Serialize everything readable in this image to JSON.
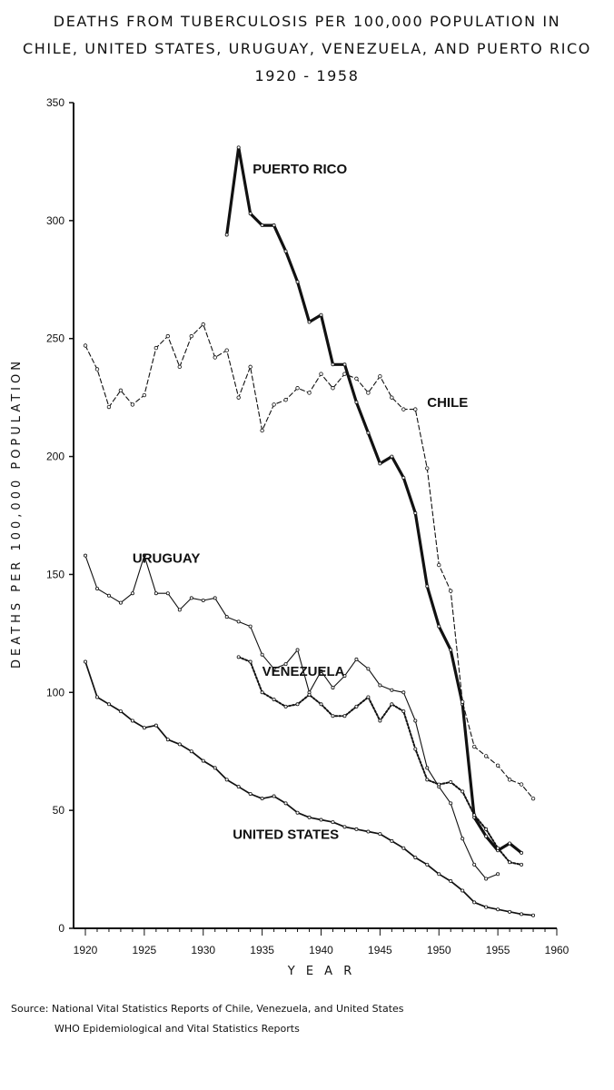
{
  "chart_data": {
    "type": "line",
    "title_lines": [
      "DEATHS FROM TUBERCULOSIS PER 100,000 POPULATION IN",
      "CHILE, UNITED STATES, URUGUAY, VENEZUELA, AND PUERTO RICO",
      "1920 - 1958"
    ],
    "xlabel": "Y E A R",
    "ylabel": "DEATHS PER 100,000 POPULATION",
    "xlim": [
      1920,
      1960
    ],
    "ylim": [
      0,
      350
    ],
    "xticks": [
      1920,
      1925,
      1930,
      1935,
      1940,
      1945,
      1950,
      1955,
      1960
    ],
    "yticks": [
      0,
      50,
      100,
      150,
      200,
      250,
      300,
      350
    ],
    "grid": false,
    "legend": "none (series labeled directly on chart)",
    "series": [
      {
        "name": "PUERTO RICO",
        "style": "solid-thick",
        "x": [
          1932,
          1933,
          1934,
          1935,
          1936,
          1937,
          1938,
          1939,
          1940,
          1941,
          1942,
          1943,
          1944,
          1945,
          1946,
          1947,
          1948,
          1949,
          1950,
          1951,
          1952,
          1953,
          1954,
          1955,
          1956,
          1957
        ],
        "y": [
          294,
          331,
          303,
          298,
          298,
          287,
          274,
          257,
          260,
          239,
          239,
          223,
          210,
          197,
          200,
          191,
          176,
          145,
          128,
          118,
          95,
          47,
          39,
          33,
          36,
          32
        ]
      },
      {
        "name": "CHILE",
        "style": "dashed",
        "x": [
          1920,
          1921,
          1922,
          1923,
          1924,
          1925,
          1926,
          1927,
          1928,
          1929,
          1930,
          1931,
          1932,
          1933,
          1934,
          1935,
          1936,
          1937,
          1938,
          1939,
          1940,
          1941,
          1942,
          1943,
          1944,
          1945,
          1946,
          1947,
          1948,
          1949,
          1950,
          1951,
          1952,
          1953,
          1954,
          1955,
          1956,
          1957,
          1958
        ],
        "y": [
          247,
          237,
          221,
          228,
          222,
          226,
          246,
          251,
          238,
          251,
          256,
          242,
          245,
          225,
          238,
          211,
          222,
          224,
          229,
          227,
          235,
          229,
          235,
          233,
          227,
          234,
          225,
          220,
          220,
          195,
          154,
          143,
          96,
          77,
          73,
          69,
          63,
          61,
          55
        ]
      },
      {
        "name": "URUGUAY",
        "style": "solid-thin",
        "x": [
          1920,
          1921,
          1922,
          1923,
          1924,
          1925,
          1926,
          1927,
          1928,
          1929,
          1930,
          1931,
          1932,
          1933,
          1934,
          1935,
          1936,
          1937,
          1938,
          1939,
          1940,
          1941,
          1942,
          1943,
          1944,
          1945,
          1946,
          1947,
          1948,
          1949,
          1950,
          1951,
          1952,
          1953,
          1954,
          1955
        ],
        "y": [
          158,
          144,
          141,
          138,
          142,
          158,
          142,
          142,
          135,
          140,
          139,
          140,
          132,
          130,
          128,
          116,
          110,
          112,
          118,
          100,
          109,
          102,
          107,
          114,
          110,
          103,
          101,
          100,
          88,
          68,
          60,
          53,
          38,
          27,
          21,
          23
        ]
      },
      {
        "name": "VENEZUELA",
        "style": "dotted",
        "x": [
          1933,
          1934,
          1935,
          1936,
          1937,
          1938,
          1939,
          1940,
          1941,
          1942,
          1943,
          1944,
          1945,
          1946,
          1947,
          1948,
          1949,
          1950,
          1951,
          1952,
          1953,
          1954,
          1955,
          1956,
          1957
        ],
        "y": [
          115,
          113,
          100,
          97,
          94,
          95,
          99,
          95,
          90,
          90,
          94,
          98,
          88,
          95,
          92,
          76,
          63,
          61,
          62,
          58,
          48,
          42,
          34,
          28,
          27
        ]
      },
      {
        "name": "UNITED STATES",
        "style": "solid",
        "x": [
          1920,
          1921,
          1922,
          1923,
          1924,
          1925,
          1926,
          1927,
          1928,
          1929,
          1930,
          1931,
          1932,
          1933,
          1934,
          1935,
          1936,
          1937,
          1938,
          1939,
          1940,
          1941,
          1942,
          1943,
          1944,
          1945,
          1946,
          1947,
          1948,
          1949,
          1950,
          1951,
          1952,
          1953,
          1954,
          1955,
          1956,
          1957,
          1958
        ],
        "y": [
          113,
          98,
          95,
          92,
          88,
          85,
          86,
          80,
          78,
          75,
          71,
          68,
          63,
          60,
          57,
          55,
          56,
          53,
          49,
          47,
          46,
          45,
          43,
          42,
          41,
          40,
          37,
          34,
          30,
          27,
          23,
          20,
          16,
          11,
          9,
          8,
          7,
          6,
          5.5
        ]
      }
    ]
  },
  "source": {
    "line1": "Source: National Vital Statistics Reports of Chile, Venezuela, and United States",
    "line2": "WHO Epidemiological and Vital Statistics Reports"
  }
}
